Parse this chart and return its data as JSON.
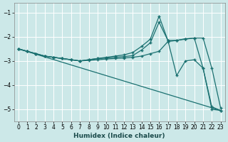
{
  "xlabel": "Humidex (Indice chaleur)",
  "background_color": "#cce8e8",
  "line_color": "#1a7070",
  "xlim": [
    -0.5,
    23.5
  ],
  "ylim": [
    -5.5,
    -0.6
  ],
  "yticks": [
    -5,
    -4,
    -3,
    -2,
    -1
  ],
  "xticks": [
    0,
    1,
    2,
    3,
    4,
    5,
    6,
    7,
    8,
    9,
    10,
    11,
    12,
    13,
    14,
    15,
    16,
    17,
    18,
    19,
    20,
    21,
    22,
    23
  ],
  "series": [
    {
      "x": [
        0,
        1,
        2,
        3,
        4,
        5,
        6,
        7,
        8,
        9,
        10,
        11,
        12,
        13,
        14,
        15,
        16,
        17,
        18,
        19,
        20,
        21,
        22,
        23
      ],
      "y": [
        -2.5,
        -2.6,
        -2.7,
        -2.8,
        -2.85,
        -2.9,
        -2.95,
        -3.0,
        -2.95,
        -2.9,
        -2.85,
        -2.8,
        -2.75,
        -2.65,
        -2.4,
        -2.1,
        -1.15,
        -2.15,
        -3.6,
        -3.0,
        -2.95,
        -3.3,
        -4.9,
        -5.05
      ]
    },
    {
      "x": [
        0,
        1,
        2,
        3,
        4,
        5,
        6,
        7,
        8,
        9,
        10,
        11,
        12,
        13,
        14,
        15,
        16,
        17,
        18,
        19,
        20,
        21,
        22,
        23
      ],
      "y": [
        -2.5,
        -2.6,
        -2.7,
        -2.8,
        -2.85,
        -2.9,
        -2.95,
        -3.0,
        -2.95,
        -2.9,
        -2.88,
        -2.85,
        -2.82,
        -2.78,
        -2.55,
        -2.25,
        -1.4,
        -2.15,
        -2.15,
        -2.1,
        -2.05,
        -2.05,
        -3.3,
        -4.95
      ]
    },
    {
      "x": [
        0,
        1,
        2,
        3,
        4,
        5,
        6,
        7,
        8,
        9,
        10,
        11,
        12,
        13,
        14,
        15,
        16,
        17,
        18,
        19,
        20,
        21,
        22,
        23
      ],
      "y": [
        -2.5,
        -2.6,
        -2.7,
        -2.8,
        -2.85,
        -2.9,
        -2.95,
        -3.0,
        -2.98,
        -2.95,
        -2.92,
        -2.9,
        -2.88,
        -2.85,
        -2.8,
        -2.7,
        -2.6,
        -2.2,
        -2.15,
        -2.08,
        -2.05,
        -3.3,
        -5.0,
        -5.05
      ]
    },
    {
      "x": [
        0,
        23
      ],
      "y": [
        -2.5,
        -5.05
      ],
      "no_marker": true
    }
  ]
}
